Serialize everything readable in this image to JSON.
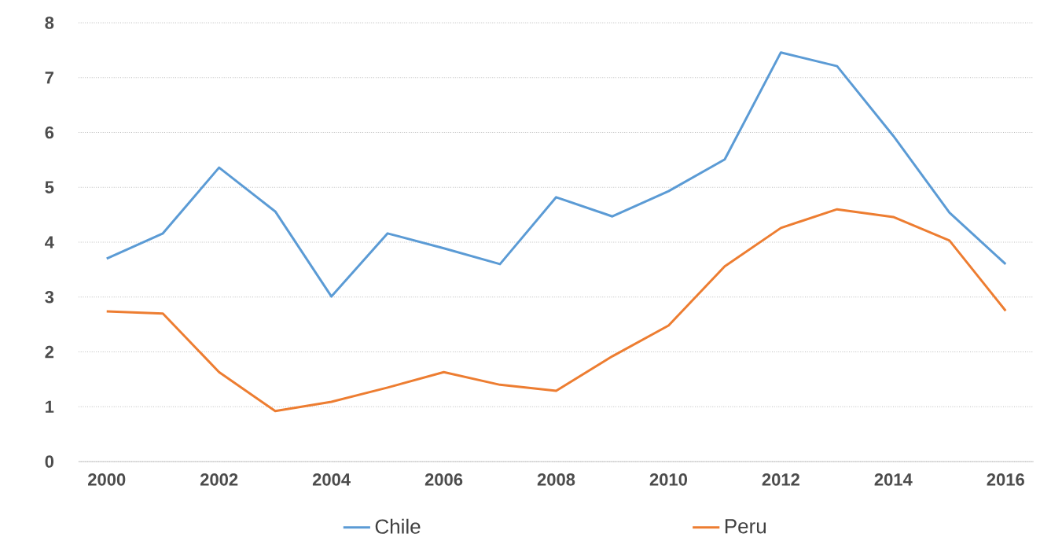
{
  "chart_data": {
    "type": "line",
    "x": [
      2000,
      2001,
      2002,
      2003,
      2004,
      2005,
      2006,
      2007,
      2008,
      2009,
      2010,
      2011,
      2012,
      2013,
      2014,
      2015,
      2016
    ],
    "series": [
      {
        "name": "Chile",
        "color": "#5b9bd5",
        "values": [
          3.7,
          4.16,
          5.36,
          4.56,
          3.01,
          4.16,
          3.89,
          3.6,
          4.82,
          4.47,
          4.93,
          5.51,
          7.46,
          7.21,
          5.94,
          4.54,
          3.6
        ]
      },
      {
        "name": "Peru",
        "color": "#ed7d31",
        "values": [
          2.74,
          2.7,
          1.63,
          0.92,
          1.09,
          1.35,
          1.63,
          1.4,
          1.29,
          1.92,
          2.48,
          3.56,
          4.26,
          4.6,
          4.46,
          4.03,
          2.75
        ]
      }
    ],
    "xlim": [
      1999.5,
      2016.5
    ],
    "xticks": [
      2000,
      2002,
      2004,
      2006,
      2008,
      2010,
      2012,
      2014,
      2016
    ],
    "ylim": [
      0,
      8
    ],
    "yticks": [
      0,
      1,
      2,
      3,
      4,
      5,
      6,
      7,
      8
    ],
    "grid": "y",
    "legend": "bottom",
    "marker": "none",
    "line_style": "solid"
  }
}
